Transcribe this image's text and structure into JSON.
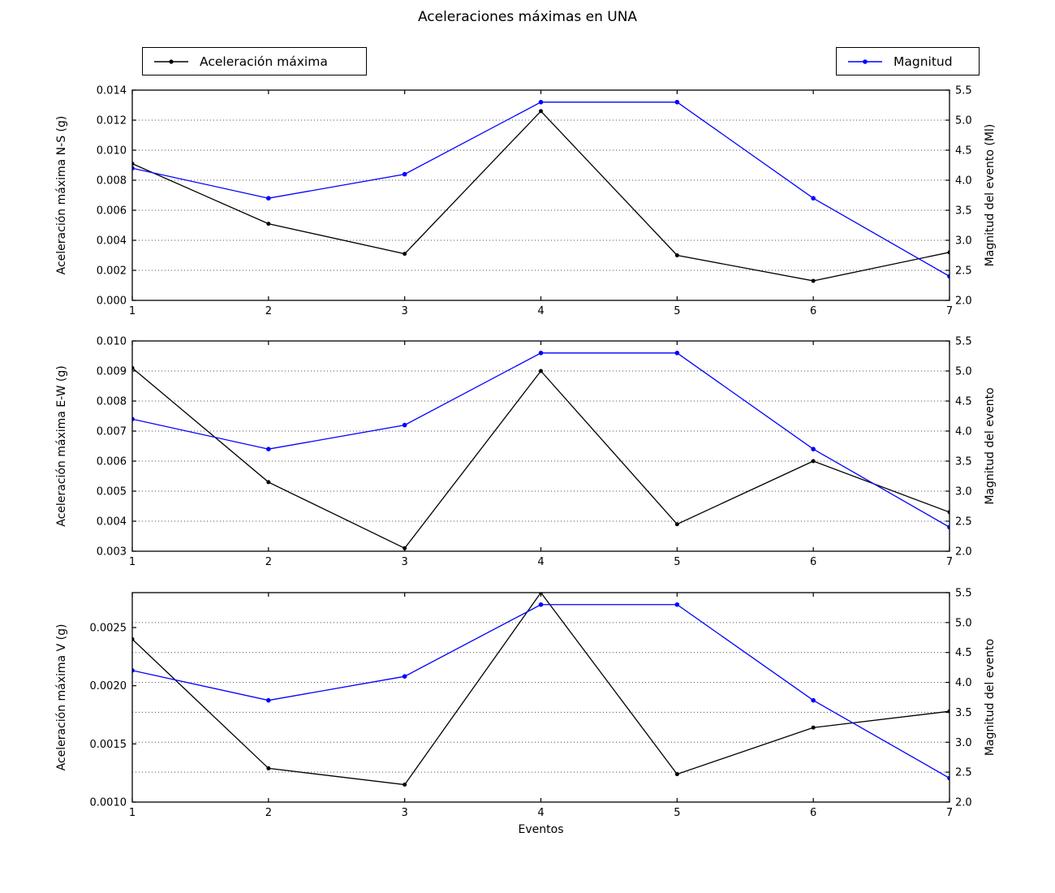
{
  "title": "Aceleraciones máximas en UNA",
  "xlabel": "Eventos",
  "legend": {
    "acceleration": {
      "label": "Aceleración máxima",
      "color": "#000000",
      "location": "top-left"
    },
    "magnitude": {
      "label": "Magnitud",
      "color": "#0000ff",
      "location": "top-right"
    }
  },
  "colors": {
    "acceleration": "#000000",
    "magnitude": "#0000ff",
    "grid": "#4d4d4d"
  },
  "chart_data": [
    {
      "type": "line",
      "grid": true,
      "x": [
        1,
        2,
        3,
        4,
        5,
        6,
        7
      ],
      "xlim": [
        1,
        7
      ],
      "xticks": {
        "values": [
          1,
          2,
          3,
          4,
          5,
          6,
          7
        ],
        "labels": [
          "1",
          "2",
          "3",
          "4",
          "5",
          "6",
          "7"
        ]
      },
      "ylabel_left": "Aceleración máxima N-S (g)",
      "ylabel_right": "Magnitud del evento (Ml)",
      "ylim_left": [
        0.0,
        0.014
      ],
      "ylim_right": [
        2.0,
        5.5
      ],
      "yticks_left": {
        "values": [
          0.0,
          0.002,
          0.004,
          0.006,
          0.008,
          0.01,
          0.012,
          0.014
        ],
        "labels": [
          "0.000",
          "0.002",
          "0.004",
          "0.006",
          "0.008",
          "0.010",
          "0.012",
          "0.014"
        ]
      },
      "yticks_right": {
        "values": [
          2.0,
          2.5,
          3.0,
          3.5,
          4.0,
          4.5,
          5.0,
          5.5
        ],
        "labels": [
          "2.0",
          "2.5",
          "3.0",
          "3.5",
          "4.0",
          "4.5",
          "5.0",
          "5.5"
        ]
      },
      "series": [
        {
          "name": "Aceleración máxima",
          "axis": "left",
          "color": "#000000",
          "values": [
            0.0091,
            0.0051,
            0.0031,
            0.0126,
            0.003,
            0.0013,
            0.0032
          ]
        },
        {
          "name": "Magnitud",
          "axis": "right",
          "color": "#0000ff",
          "values": [
            4.2,
            3.7,
            4.1,
            5.3,
            5.3,
            3.7,
            2.4
          ]
        }
      ]
    },
    {
      "type": "line",
      "grid": true,
      "x": [
        1,
        2,
        3,
        4,
        5,
        6,
        7
      ],
      "xlim": [
        1,
        7
      ],
      "xticks": {
        "values": [
          1,
          2,
          3,
          4,
          5,
          6,
          7
        ],
        "labels": [
          "1",
          "2",
          "3",
          "4",
          "5",
          "6",
          "7"
        ]
      },
      "ylabel_left": "Aceleración máxima E-W (g)",
      "ylabel_right": "Magnitud del evento",
      "ylim_left": [
        0.003,
        0.01
      ],
      "ylim_right": [
        2.0,
        5.5
      ],
      "yticks_left": {
        "values": [
          0.003,
          0.004,
          0.005,
          0.006,
          0.007,
          0.008,
          0.009,
          0.01
        ],
        "labels": [
          "0.003",
          "0.004",
          "0.005",
          "0.006",
          "0.007",
          "0.008",
          "0.009",
          "0.010"
        ]
      },
      "yticks_right": {
        "values": [
          2.0,
          2.5,
          3.0,
          3.5,
          4.0,
          4.5,
          5.0,
          5.5
        ],
        "labels": [
          "2.0",
          "2.5",
          "3.0",
          "3.5",
          "4.0",
          "4.5",
          "5.0",
          "5.5"
        ]
      },
      "series": [
        {
          "name": "Aceleración máxima",
          "axis": "left",
          "color": "#000000",
          "values": [
            0.0091,
            0.0053,
            0.0031,
            0.009,
            0.0039,
            0.006,
            0.0043
          ]
        },
        {
          "name": "Magnitud",
          "axis": "right",
          "color": "#0000ff",
          "values": [
            4.2,
            3.7,
            4.1,
            5.3,
            5.3,
            3.7,
            2.4
          ]
        }
      ]
    },
    {
      "type": "line",
      "grid": true,
      "x": [
        1,
        2,
        3,
        4,
        5,
        6,
        7
      ],
      "xlim": [
        1,
        7
      ],
      "xticks": {
        "values": [
          1,
          2,
          3,
          4,
          5,
          6,
          7
        ],
        "labels": [
          "1",
          "2",
          "3",
          "4",
          "5",
          "6",
          "7"
        ]
      },
      "ylabel_left": "Aceleración máxima V (g)",
      "ylabel_right": "Magnitud del evento",
      "ylim_left": [
        0.001,
        0.0028
      ],
      "ylim_right": [
        2.0,
        5.5
      ],
      "yticks_left": {
        "values": [
          0.001,
          0.0015,
          0.002,
          0.0025
        ],
        "labels": [
          "0.0010",
          "0.0015",
          "0.0020",
          "0.0025"
        ]
      },
      "yticks_right": {
        "values": [
          2.0,
          2.5,
          3.0,
          3.5,
          4.0,
          4.5,
          5.0,
          5.5
        ],
        "labels": [
          "2.0",
          "2.5",
          "3.0",
          "3.5",
          "4.0",
          "4.5",
          "5.0",
          "5.5"
        ]
      },
      "series": [
        {
          "name": "Aceleración máxima",
          "axis": "left",
          "color": "#000000",
          "values": [
            0.0024,
            0.00129,
            0.00115,
            0.0028,
            0.00124,
            0.00164,
            0.00178
          ]
        },
        {
          "name": "Magnitud",
          "axis": "right",
          "color": "#0000ff",
          "values": [
            4.2,
            3.7,
            4.1,
            5.3,
            5.3,
            3.7,
            2.4
          ]
        }
      ]
    }
  ]
}
